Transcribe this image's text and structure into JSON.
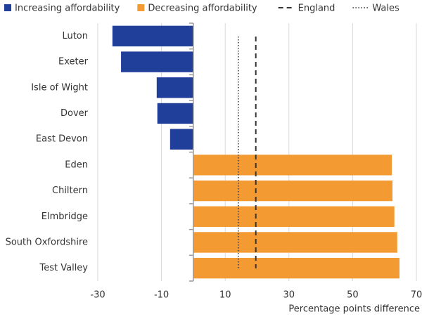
{
  "chart_data": {
    "type": "bar",
    "orientation": "horizontal",
    "categories": [
      "Luton",
      "Exeter",
      "Isle of Wight",
      "Dover",
      "East Devon",
      "Eden",
      "Chiltern",
      "Elmbridge",
      "South Oxfordshire",
      "Test Valley"
    ],
    "series": [
      {
        "name": "Increasing affordability",
        "color": "#203f9a",
        "values": [
          -25.4,
          -22.7,
          -11.5,
          -11.3,
          -7.3,
          null,
          null,
          null,
          null,
          null
        ]
      },
      {
        "name": "Decreasing affordability",
        "color": "#f39a32",
        "values": [
          null,
          null,
          null,
          null,
          null,
          62.3,
          62.5,
          63.1,
          64.0,
          64.7
        ]
      }
    ],
    "reference_lines": [
      {
        "name": "England",
        "value": 19.6,
        "style": "dashed"
      },
      {
        "name": "Wales",
        "value": 14.1,
        "style": "dotted"
      }
    ],
    "x_label": "Percentage points difference",
    "xlim": [
      -30,
      70
    ],
    "xticks": [
      -30,
      -10,
      10,
      30,
      50,
      70
    ],
    "grid": true
  }
}
